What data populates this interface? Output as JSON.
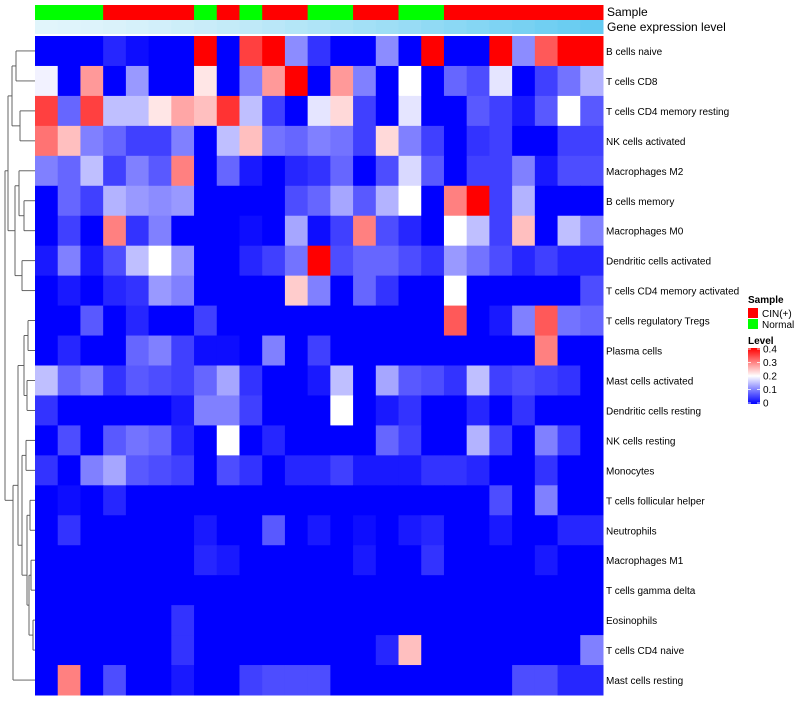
{
  "chart_data": {
    "type": "heatmap",
    "annotation_rows": [
      "Sample",
      "Gene expression level"
    ],
    "sample_groups": [
      "Normal",
      "Normal",
      "Normal",
      "CIN(+)",
      "CIN(+)",
      "CIN(+)",
      "CIN(+)",
      "Normal",
      "CIN(+)",
      "Normal",
      "CIN(+)",
      "CIN(+)",
      "Normal",
      "Normal",
      "CIN(+)",
      "CIN(+)",
      "Normal",
      "Normal",
      "CIN(+)",
      "CIN(+)",
      "CIN(+)",
      "CIN(+)",
      "CIN(+)",
      "CIN(+)",
      "CIN(+)"
    ],
    "gene_expression_level": [
      0.02,
      0.05,
      0.08,
      0.12,
      0.16,
      0.2,
      0.24,
      0.28,
      0.32,
      0.36,
      0.4,
      0.44,
      0.48,
      0.52,
      0.56,
      0.6,
      0.64,
      0.68,
      0.72,
      0.76,
      0.8,
      0.84,
      0.88,
      0.92,
      0.96
    ],
    "rows": [
      "B cells naive",
      "T cells CD8",
      "T cells CD4 memory resting",
      "NK cells activated",
      "Macrophages M2",
      "B cells memory",
      "Macrophages M0",
      "Dendritic cells activated",
      "T cells CD4 memory activated",
      "T cells regulatory  Tregs",
      "Plasma cells",
      "Mast cells activated",
      "Dendritic cells resting",
      "NK cells resting",
      "Monocytes",
      "T cells follicular helper",
      "Neutrophils",
      "Macrophages M1",
      "T cells gamma delta",
      "Eosinophils",
      "T cells CD4 naive",
      "Mast cells resting"
    ],
    "values": [
      [
        0,
        0,
        0,
        0.03,
        0.01,
        0,
        0,
        0.4,
        0,
        0.35,
        0.4,
        0.11,
        0.04,
        0,
        0,
        0.11,
        0,
        0.4,
        0,
        0,
        0.4,
        0.11,
        0.33,
        0.4,
        0.4
      ],
      [
        0.19,
        0,
        0.28,
        0,
        0.12,
        0,
        0,
        0.22,
        0,
        0.1,
        0.28,
        0.4,
        0,
        0.28,
        0.1,
        0,
        0.2,
        0,
        0.08,
        0.06,
        0.18,
        0,
        0.05,
        0.09,
        0.14
      ],
      [
        0.35,
        0.08,
        0.35,
        0.15,
        0.15,
        0.22,
        0.27,
        0.25,
        0.36,
        0.15,
        0.05,
        0,
        0.18,
        0.23,
        0.05,
        0,
        0.18,
        0,
        0,
        0.07,
        0.05,
        0.02,
        0.07,
        0.2,
        0.07
      ],
      [
        0.31,
        0.25,
        0.1,
        0.08,
        0.05,
        0.05,
        0.1,
        0,
        0.15,
        0.25,
        0.09,
        0.08,
        0.1,
        0.09,
        0.05,
        0.23,
        0.1,
        0.05,
        0,
        0.04,
        0.05,
        0,
        0,
        0.05,
        0.05
      ],
      [
        0.1,
        0.08,
        0.15,
        0.05,
        0.1,
        0.07,
        0.3,
        0,
        0.08,
        0.02,
        0,
        0.03,
        0.04,
        0.08,
        0,
        0.06,
        0.17,
        0.07,
        0,
        0.05,
        0.05,
        0.1,
        0.02,
        0.06,
        0.06
      ],
      [
        0,
        0.08,
        0.05,
        0.14,
        0.12,
        0.11,
        0.12,
        0,
        0,
        0,
        0,
        0.06,
        0.08,
        0.13,
        0.07,
        0.14,
        0.2,
        0,
        0.3,
        0.4,
        0.05,
        0.14,
        0,
        0,
        0
      ],
      [
        0,
        0.05,
        0,
        0.3,
        0.04,
        0.1,
        0,
        0,
        0,
        0.01,
        0,
        0.13,
        0.01,
        0.05,
        0.3,
        0.06,
        0.03,
        0,
        0.2,
        0.15,
        0.05,
        0.25,
        0,
        0.15,
        0.1
      ],
      [
        0.02,
        0.1,
        0.02,
        0.06,
        0.15,
        0.2,
        0.12,
        0,
        0,
        0.03,
        0.05,
        0.09,
        0.4,
        0.06,
        0.08,
        0.08,
        0.06,
        0.04,
        0.12,
        0.09,
        0.06,
        0.03,
        0.05,
        0.03,
        0.03
      ],
      [
        0,
        0.02,
        0,
        0.03,
        0.04,
        0.12,
        0.1,
        0,
        0,
        0,
        0,
        0.24,
        0.1,
        0,
        0.08,
        0.04,
        0,
        0,
        0.2,
        0,
        0,
        0,
        0,
        0,
        0.06
      ],
      [
        0,
        0,
        0.07,
        0,
        0.03,
        0,
        0,
        0.05,
        0,
        0,
        0,
        0,
        0,
        0,
        0,
        0,
        0,
        0,
        0.33,
        0,
        0.02,
        0.1,
        0.33,
        0.09,
        0.08
      ],
      [
        0,
        0.03,
        0,
        0,
        0.08,
        0.1,
        0.05,
        0.01,
        0.01,
        0,
        0.1,
        0,
        0.05,
        0,
        0,
        0,
        0,
        0,
        0,
        0,
        0,
        0,
        0.3,
        0,
        0
      ],
      [
        0.15,
        0.08,
        0.1,
        0.04,
        0.07,
        0.06,
        0.05,
        0.08,
        0.13,
        0.04,
        0,
        0,
        0.02,
        0.15,
        0,
        0.13,
        0.07,
        0.06,
        0.04,
        0.15,
        0.05,
        0.06,
        0.05,
        0.04,
        0
      ],
      [
        0.04,
        0,
        0,
        0,
        0,
        0,
        0.02,
        0.1,
        0.1,
        0.05,
        0,
        0,
        0,
        0.2,
        0,
        0.02,
        0.04,
        0,
        0,
        0.03,
        0,
        0.04,
        0,
        0,
        0
      ],
      [
        0,
        0.06,
        0,
        0.07,
        0.09,
        0.08,
        0.03,
        0,
        0.2,
        0,
        0.03,
        0,
        0,
        0,
        0,
        0.08,
        0.05,
        0,
        0,
        0.14,
        0.05,
        0,
        0.1,
        0.05,
        0
      ],
      [
        0.04,
        0,
        0.1,
        0.13,
        0.07,
        0.06,
        0.05,
        0,
        0.06,
        0.04,
        0,
        0.03,
        0.03,
        0.05,
        0.02,
        0.02,
        0.02,
        0.04,
        0.04,
        0.03,
        0,
        0,
        0.04,
        0,
        0
      ],
      [
        0,
        0.01,
        0,
        0.03,
        0,
        0,
        0,
        0,
        0,
        0,
        0,
        0,
        0,
        0,
        0,
        0,
        0,
        0,
        0,
        0,
        0.06,
        0,
        0.1,
        0,
        0
      ],
      [
        0,
        0.04,
        0,
        0,
        0,
        0,
        0,
        0.02,
        0,
        0,
        0.07,
        0,
        0.02,
        0,
        0.01,
        0,
        0.02,
        0.03,
        0,
        0,
        0.02,
        0,
        0,
        0.03,
        0.03
      ],
      [
        0,
        0,
        0,
        0,
        0,
        0,
        0,
        0.03,
        0.02,
        0,
        0,
        0,
        0,
        0,
        0.02,
        0,
        0,
        0.04,
        0,
        0,
        0,
        0,
        0.02,
        0,
        0
      ],
      [
        0,
        0,
        0,
        0,
        0,
        0,
        0,
        0,
        0,
        0,
        0,
        0,
        0,
        0,
        0,
        0,
        0,
        0,
        0,
        0,
        0,
        0,
        0,
        0,
        0
      ],
      [
        0,
        0,
        0,
        0,
        0,
        0,
        0.04,
        0,
        0,
        0,
        0,
        0,
        0,
        0,
        0,
        0,
        0,
        0,
        0,
        0,
        0,
        0,
        0,
        0,
        0
      ],
      [
        0,
        0,
        0,
        0,
        0,
        0,
        0.04,
        0,
        0,
        0,
        0,
        0,
        0,
        0,
        0,
        0.03,
        0.25,
        0,
        0,
        0,
        0,
        0,
        0,
        0,
        0.1
      ],
      [
        0,
        0.3,
        0,
        0.06,
        0,
        0,
        0.02,
        0,
        0,
        0.05,
        0.06,
        0.06,
        0.06,
        0,
        0,
        0,
        0,
        0,
        0,
        0,
        0,
        0.06,
        0.06,
        0.03,
        0.03
      ]
    ],
    "color_scale": {
      "low": "#0000ff",
      "mid": "#ffffff",
      "high": "#ff0000",
      "min": 0,
      "mid_value": 0.2,
      "max": 0.4
    },
    "group_colors": {
      "CIN(+)": "#ff0000",
      "Normal": "#00ff00"
    },
    "gene_level_colors": {
      "low": "#e2f5fb",
      "high": "#5dc8f0"
    },
    "legend": {
      "sample_title": "Sample",
      "sample_entries": [
        {
          "label": "CIN(+)",
          "color": "#ff0000"
        },
        {
          "label": "Normal",
          "color": "#00ff00"
        }
      ],
      "level_title": "Level",
      "level_ticks": [
        "0.4",
        "0.3",
        "0.2",
        "0.1",
        "0"
      ]
    },
    "row_dendrogram": true,
    "column_dendrogram": false
  }
}
